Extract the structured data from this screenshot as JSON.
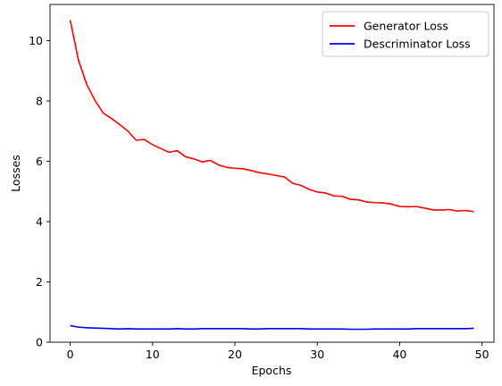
{
  "chart_data": {
    "type": "line",
    "title": "",
    "xlabel": "Epochs",
    "ylabel": "Losses",
    "xlim": [
      -2.45,
      51.45
    ],
    "ylim": [
      -0.0,
      11.2
    ],
    "xticks": [
      0,
      10,
      20,
      30,
      40,
      50
    ],
    "yticks": [
      0,
      2,
      4,
      6,
      8,
      10
    ],
    "grid": false,
    "legend_position": "upper right",
    "x": [
      0,
      1,
      2,
      3,
      4,
      5,
      6,
      7,
      8,
      9,
      10,
      11,
      12,
      13,
      14,
      15,
      16,
      17,
      18,
      19,
      20,
      21,
      22,
      23,
      24,
      25,
      26,
      27,
      28,
      29,
      30,
      31,
      32,
      33,
      34,
      35,
      36,
      37,
      38,
      39,
      40,
      41,
      42,
      43,
      44,
      45,
      46,
      47,
      48,
      49
    ],
    "series": [
      {
        "name": "Generator Loss",
        "color": "#ff0000",
        "values": [
          10.68,
          9.35,
          8.55,
          8.02,
          7.6,
          7.42,
          7.22,
          7.0,
          6.7,
          6.72,
          6.55,
          6.42,
          6.3,
          6.35,
          6.15,
          6.08,
          5.98,
          6.03,
          5.88,
          5.8,
          5.77,
          5.75,
          5.69,
          5.62,
          5.58,
          5.53,
          5.48,
          5.27,
          5.2,
          5.07,
          4.98,
          4.95,
          4.85,
          4.84,
          4.74,
          4.72,
          4.65,
          4.63,
          4.62,
          4.58,
          4.5,
          4.49,
          4.5,
          4.45,
          4.39,
          4.38,
          4.4,
          4.35,
          4.37,
          4.33
        ]
      },
      {
        "name": "Descriminator Loss",
        "color": "#0000ff",
        "values": [
          0.55,
          0.5,
          0.48,
          0.47,
          0.46,
          0.45,
          0.44,
          0.45,
          0.44,
          0.44,
          0.44,
          0.44,
          0.44,
          0.45,
          0.44,
          0.44,
          0.45,
          0.45,
          0.45,
          0.45,
          0.45,
          0.45,
          0.44,
          0.44,
          0.45,
          0.45,
          0.45,
          0.45,
          0.45,
          0.44,
          0.44,
          0.44,
          0.44,
          0.44,
          0.43,
          0.43,
          0.43,
          0.44,
          0.44,
          0.44,
          0.44,
          0.44,
          0.45,
          0.45,
          0.45,
          0.45,
          0.45,
          0.45,
          0.45,
          0.46
        ]
      }
    ]
  }
}
